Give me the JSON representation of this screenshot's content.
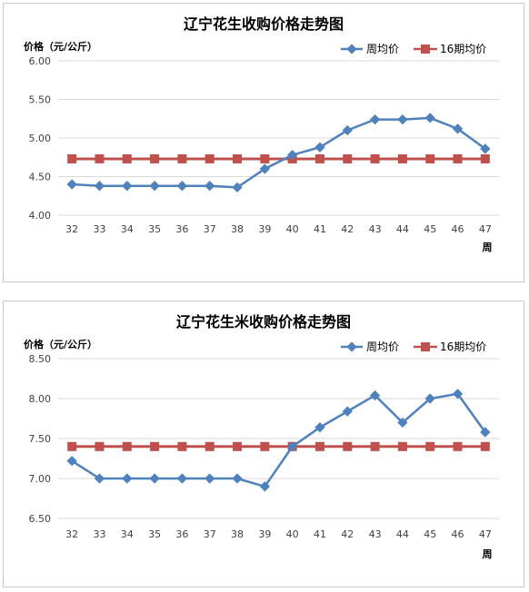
{
  "colors": {
    "weekly": "#4f81bd",
    "avg16": "#c0504d",
    "grid": "#d9d9d9"
  },
  "chart_data": [
    {
      "type": "line",
      "title": "辽宁花生收购价格走势图",
      "ylabel": "价格（元/公斤）",
      "xlabel": "周",
      "x": [
        32,
        33,
        34,
        35,
        36,
        37,
        38,
        39,
        40,
        41,
        42,
        43,
        44,
        45,
        46,
        47
      ],
      "ylim": [
        4.0,
        6.0
      ],
      "yticks": [
        "4.00",
        "4.50",
        "5.00",
        "5.50",
        "6.00"
      ],
      "legend_position": "top-right",
      "grid": true,
      "series": [
        {
          "name": "周均价",
          "marker": "diamond",
          "values": [
            4.4,
            4.38,
            4.38,
            4.38,
            4.38,
            4.38,
            4.36,
            4.6,
            4.78,
            4.88,
            5.1,
            5.24,
            5.24,
            5.26,
            5.12,
            4.86
          ]
        },
        {
          "name": "16期均价",
          "marker": "square",
          "values": [
            4.73,
            4.73,
            4.73,
            4.73,
            4.73,
            4.73,
            4.73,
            4.73,
            4.73,
            4.73,
            4.73,
            4.73,
            4.73,
            4.73,
            4.73,
            4.73
          ]
        }
      ]
    },
    {
      "type": "line",
      "title": "辽宁花生米收购价格走势图",
      "ylabel": "价格（元/公斤）",
      "xlabel": "周",
      "x": [
        32,
        33,
        34,
        35,
        36,
        37,
        38,
        39,
        40,
        41,
        42,
        43,
        44,
        45,
        46,
        47
      ],
      "ylim": [
        6.5,
        8.5
      ],
      "yticks": [
        "6.50",
        "7.00",
        "7.50",
        "8.00",
        "8.50"
      ],
      "legend_position": "top-right",
      "grid": true,
      "series": [
        {
          "name": "周均价",
          "marker": "diamond",
          "values": [
            7.22,
            7.0,
            7.0,
            7.0,
            7.0,
            7.0,
            7.0,
            6.9,
            7.4,
            7.64,
            7.84,
            8.04,
            7.7,
            8.0,
            8.06,
            7.58
          ]
        },
        {
          "name": "16期均价",
          "marker": "square",
          "values": [
            7.4,
            7.4,
            7.4,
            7.4,
            7.4,
            7.4,
            7.4,
            7.4,
            7.4,
            7.4,
            7.4,
            7.4,
            7.4,
            7.4,
            7.4,
            7.4
          ]
        }
      ]
    }
  ]
}
